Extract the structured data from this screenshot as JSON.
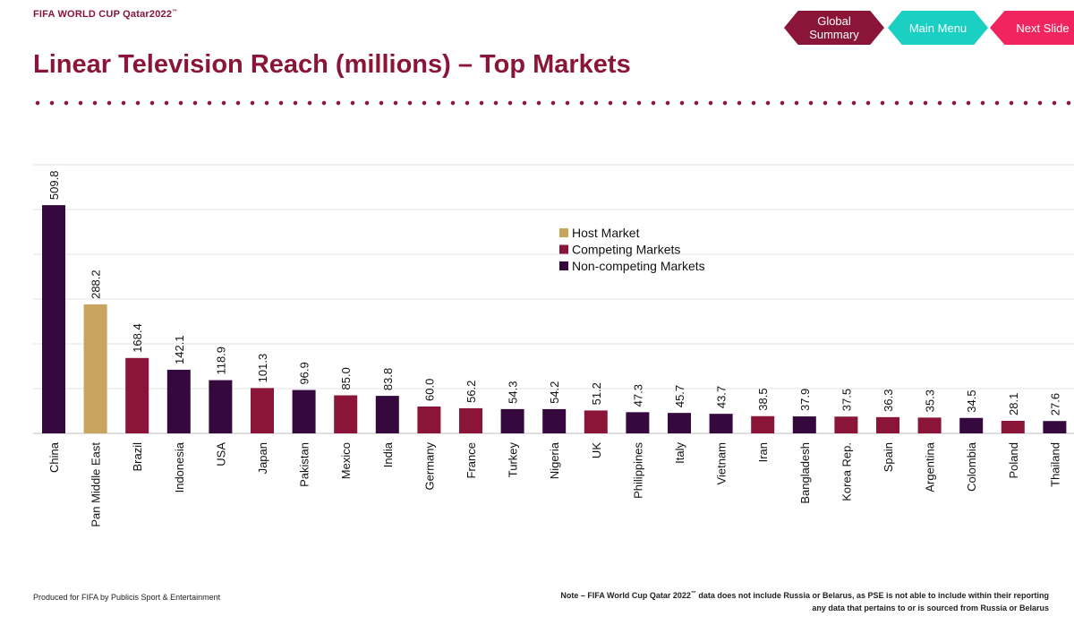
{
  "brand": {
    "name": "FIFA WORLD CUP Qatar2022",
    "tm": "™"
  },
  "title": "Linear Television Reach (millions) – Top Markets",
  "nav": {
    "global_summary": "Global Summary",
    "main_menu": "Main Menu",
    "next_slide": "Next Slide"
  },
  "colors": {
    "brand": "#8a1538",
    "host": "#c9a45f",
    "competing": "#8a1538",
    "non_competing": "#35093e",
    "teal": "#19d0c3",
    "pink": "#f0255f"
  },
  "chart_data": {
    "type": "bar",
    "categories": [
      "China",
      "Pan Middle East",
      "Brazil",
      "Indonesia",
      "USA",
      "Japan",
      "Pakistan",
      "Mexico",
      "India",
      "Germany",
      "France",
      "Turkey",
      "Nigeria",
      "UK",
      "Philippines",
      "Italy",
      "Vietnam",
      "Iran",
      "Bangladesh",
      "Korea Rep.",
      "Spain",
      "Argentina",
      "Colombia",
      "Poland",
      "Thailand"
    ],
    "values": [
      509.8,
      288.2,
      168.4,
      142.1,
      118.9,
      101.3,
      96.9,
      85.0,
      83.8,
      60.0,
      56.2,
      54.3,
      54.2,
      51.2,
      47.3,
      45.7,
      43.7,
      38.5,
      37.9,
      37.5,
      36.3,
      35.3,
      34.5,
      28.1,
      27.6
    ],
    "value_labels": [
      "509.8",
      "288.2",
      "168.4",
      "142.1",
      "118.9",
      "101.3",
      "96.9",
      "85.0",
      "83.8",
      "60.0",
      "56.2",
      "54.3",
      "54.2",
      "51.2",
      "47.3",
      "45.7",
      "43.7",
      "38.5",
      "37.9",
      "37.5",
      "36.3",
      "35.3",
      "34.5",
      "28.1",
      "27.6"
    ],
    "groups": [
      "Non-competing Markets",
      "Host Market",
      "Competing Markets",
      "Non-competing Markets",
      "Non-competing Markets",
      "Competing Markets",
      "Non-competing Markets",
      "Competing Markets",
      "Non-competing Markets",
      "Competing Markets",
      "Competing Markets",
      "Non-competing Markets",
      "Non-competing Markets",
      "Competing Markets",
      "Non-competing Markets",
      "Non-competing Markets",
      "Non-competing Markets",
      "Competing Markets",
      "Non-competing Markets",
      "Competing Markets",
      "Competing Markets",
      "Competing Markets",
      "Non-competing Markets",
      "Competing Markets",
      "Non-competing Markets"
    ],
    "legend": [
      {
        "name": "Host Market",
        "color": "#c9a45f"
      },
      {
        "name": "Competing Markets",
        "color": "#8a1538"
      },
      {
        "name": "Non-competing Markets",
        "color": "#35093e"
      }
    ],
    "legend_position": "center-right",
    "ylim": [
      0,
      600
    ],
    "gridlines": [
      0,
      100,
      200,
      300,
      400,
      500,
      600
    ],
    "grid": true
  },
  "footer": {
    "produced_by": "Produced for FIFA by Publicis Sport & Entertainment",
    "note_prefix": "Note – FIFA World Cup Qatar 2022",
    "note_tm": "™",
    "note_suffix": " data does  not include Russia or Belarus, as PSE is not able to include within their reporting any data that pertains to or is sourced from Russia or Belarus"
  }
}
